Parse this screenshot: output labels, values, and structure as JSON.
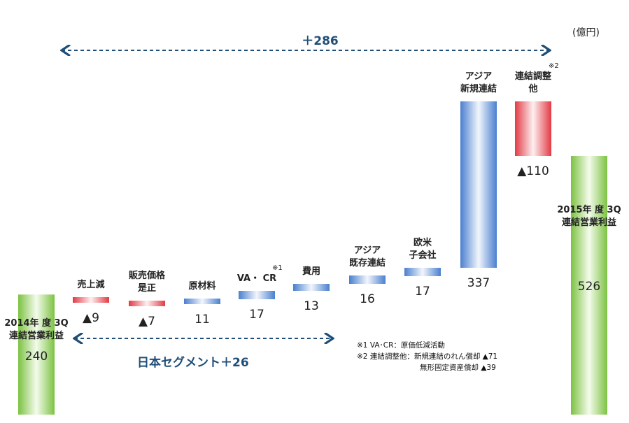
{
  "unit_label": "(億円)",
  "total_change_label": "＋286",
  "japan_segment_label": "日本セグメント＋26",
  "notes": {
    "note1": "※1 VA･CR：原価低減活動",
    "note2": "※2 連結調整他：新規連結のれん償却 ▲71",
    "note2b": "無形固定資産償却 ▲39"
  },
  "chart_data": {
    "type": "bar",
    "subtype": "waterfall",
    "unit": "億円",
    "start": {
      "label": "2014年 度 3Q\n連結営業利益",
      "value": 240,
      "display": "240"
    },
    "end": {
      "label": "2015年 度 3Q\n連結営業利益",
      "value": 526,
      "display": "526"
    },
    "steps": [
      {
        "label": "売上減",
        "value": -9,
        "display": "▲9",
        "color": "red"
      },
      {
        "label": "販売価格\n是正",
        "value": -7,
        "display": "▲7",
        "color": "red"
      },
      {
        "label": "原材料",
        "value": 11,
        "display": "11",
        "color": "blue"
      },
      {
        "label": "VA・ CR",
        "value": 17,
        "display": "17",
        "color": "blue",
        "sup": "※1"
      },
      {
        "label": "費用",
        "value": 13,
        "display": "13",
        "color": "blue"
      },
      {
        "label": "アジア\n既存連結",
        "value": 16,
        "display": "16",
        "color": "blue"
      },
      {
        "label": "欧米\n子会社",
        "value": 17,
        "display": "17",
        "color": "blue"
      },
      {
        "label": "アジア\n新規連結",
        "value": 337,
        "display": "337",
        "color": "blue"
      },
      {
        "label": "連結調整\n他",
        "value": -110,
        "display": "▲110",
        "color": "red",
        "sup": "※2"
      }
    ],
    "colors": {
      "increase": "#4f81bd",
      "decrease": "#e0303a",
      "total": "#7ac142",
      "arrow": "#1f4e79"
    }
  }
}
